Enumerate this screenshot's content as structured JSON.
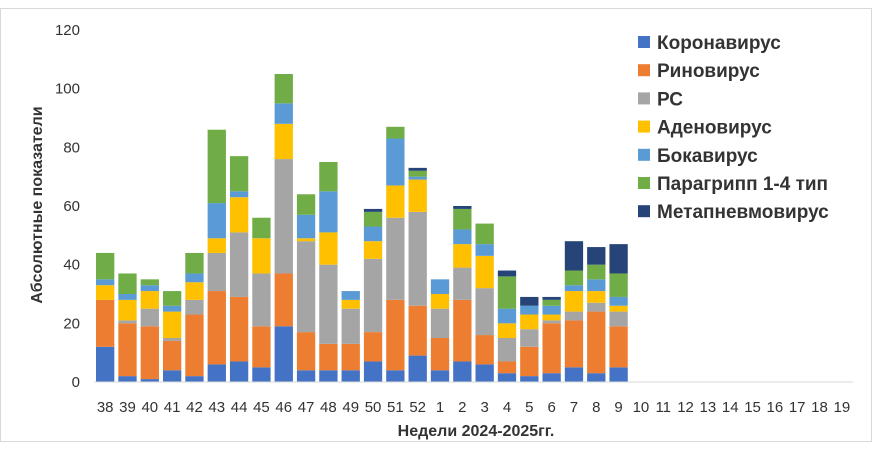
{
  "chart_data": {
    "type": "bar",
    "stacked": true,
    "xlabel": "Недели 2024-2025гг.",
    "ylabel": "Абсолютные показатели",
    "ylim": [
      0,
      120
    ],
    "yticks": [
      0,
      20,
      40,
      60,
      80,
      100,
      120
    ],
    "grid": false,
    "legend_position": "top-right",
    "categories": [
      "38",
      "39",
      "40",
      "41",
      "42",
      "43",
      "44",
      "45",
      "46",
      "47",
      "48",
      "49",
      "50",
      "51",
      "52",
      "1",
      "2",
      "3",
      "4",
      "5",
      "6",
      "7",
      "8",
      "9",
      "10",
      "11",
      "12",
      "13",
      "14",
      "15",
      "16",
      "17",
      "18",
      "19"
    ],
    "series": [
      {
        "name": "Коронавирус",
        "color": "#4472C4",
        "values": [
          12,
          2,
          1,
          4,
          2,
          6,
          7,
          5,
          19,
          4,
          4,
          4,
          7,
          4,
          9,
          4,
          7,
          6,
          3,
          2,
          3,
          5,
          3,
          5,
          0,
          0,
          0,
          0,
          0,
          0,
          0,
          0,
          0,
          0
        ]
      },
      {
        "name": "Риновирус",
        "color": "#ED7D31",
        "values": [
          16,
          18,
          18,
          10,
          21,
          25,
          22,
          14,
          18,
          13,
          9,
          9,
          10,
          24,
          17,
          11,
          21,
          10,
          4,
          10,
          17,
          16,
          21,
          14,
          0,
          0,
          0,
          0,
          0,
          0,
          0,
          0,
          0,
          0
        ]
      },
      {
        "name": "РС",
        "color": "#A5A5A5",
        "values": [
          0,
          1,
          6,
          1,
          5,
          13,
          22,
          18,
          39,
          31,
          27,
          12,
          25,
          28,
          32,
          10,
          11,
          16,
          8,
          6,
          1,
          3,
          3,
          5,
          0,
          0,
          0,
          0,
          0,
          0,
          0,
          0,
          0,
          0
        ]
      },
      {
        "name": "Аденовирус",
        "color": "#FFC000",
        "values": [
          5,
          7,
          6,
          9,
          6,
          5,
          12,
          12,
          12,
          1,
          11,
          3,
          6,
          11,
          11,
          5,
          8,
          11,
          5,
          5,
          2,
          7,
          4,
          2,
          0,
          0,
          0,
          0,
          0,
          0,
          0,
          0,
          0,
          0
        ]
      },
      {
        "name": "Бокавирус",
        "color": "#5B9BD5",
        "values": [
          2,
          2,
          2,
          2,
          3,
          12,
          2,
          0,
          7,
          8,
          14,
          3,
          5,
          16,
          1,
          5,
          5,
          4,
          5,
          3,
          3,
          2,
          4,
          3,
          0,
          0,
          0,
          0,
          0,
          0,
          0,
          0,
          0,
          0
        ]
      },
      {
        "name": "Парагрипп 1-4 тип",
        "color": "#70AD47",
        "values": [
          9,
          7,
          2,
          5,
          7,
          25,
          12,
          7,
          10,
          7,
          10,
          0,
          5,
          4,
          2,
          0,
          7,
          7,
          11,
          0,
          2,
          5,
          5,
          8,
          0,
          0,
          0,
          0,
          0,
          0,
          0,
          0,
          0,
          0
        ]
      },
      {
        "name": "Метапневмовирус",
        "color": "#264478",
        "values": [
          0,
          0,
          0,
          0,
          0,
          0,
          0,
          0,
          0,
          0,
          0,
          0,
          1,
          0,
          1,
          0,
          1,
          0,
          2,
          3,
          1,
          10,
          6,
          10,
          0,
          0,
          0,
          0,
          0,
          0,
          0,
          0,
          0,
          0
        ]
      }
    ]
  }
}
